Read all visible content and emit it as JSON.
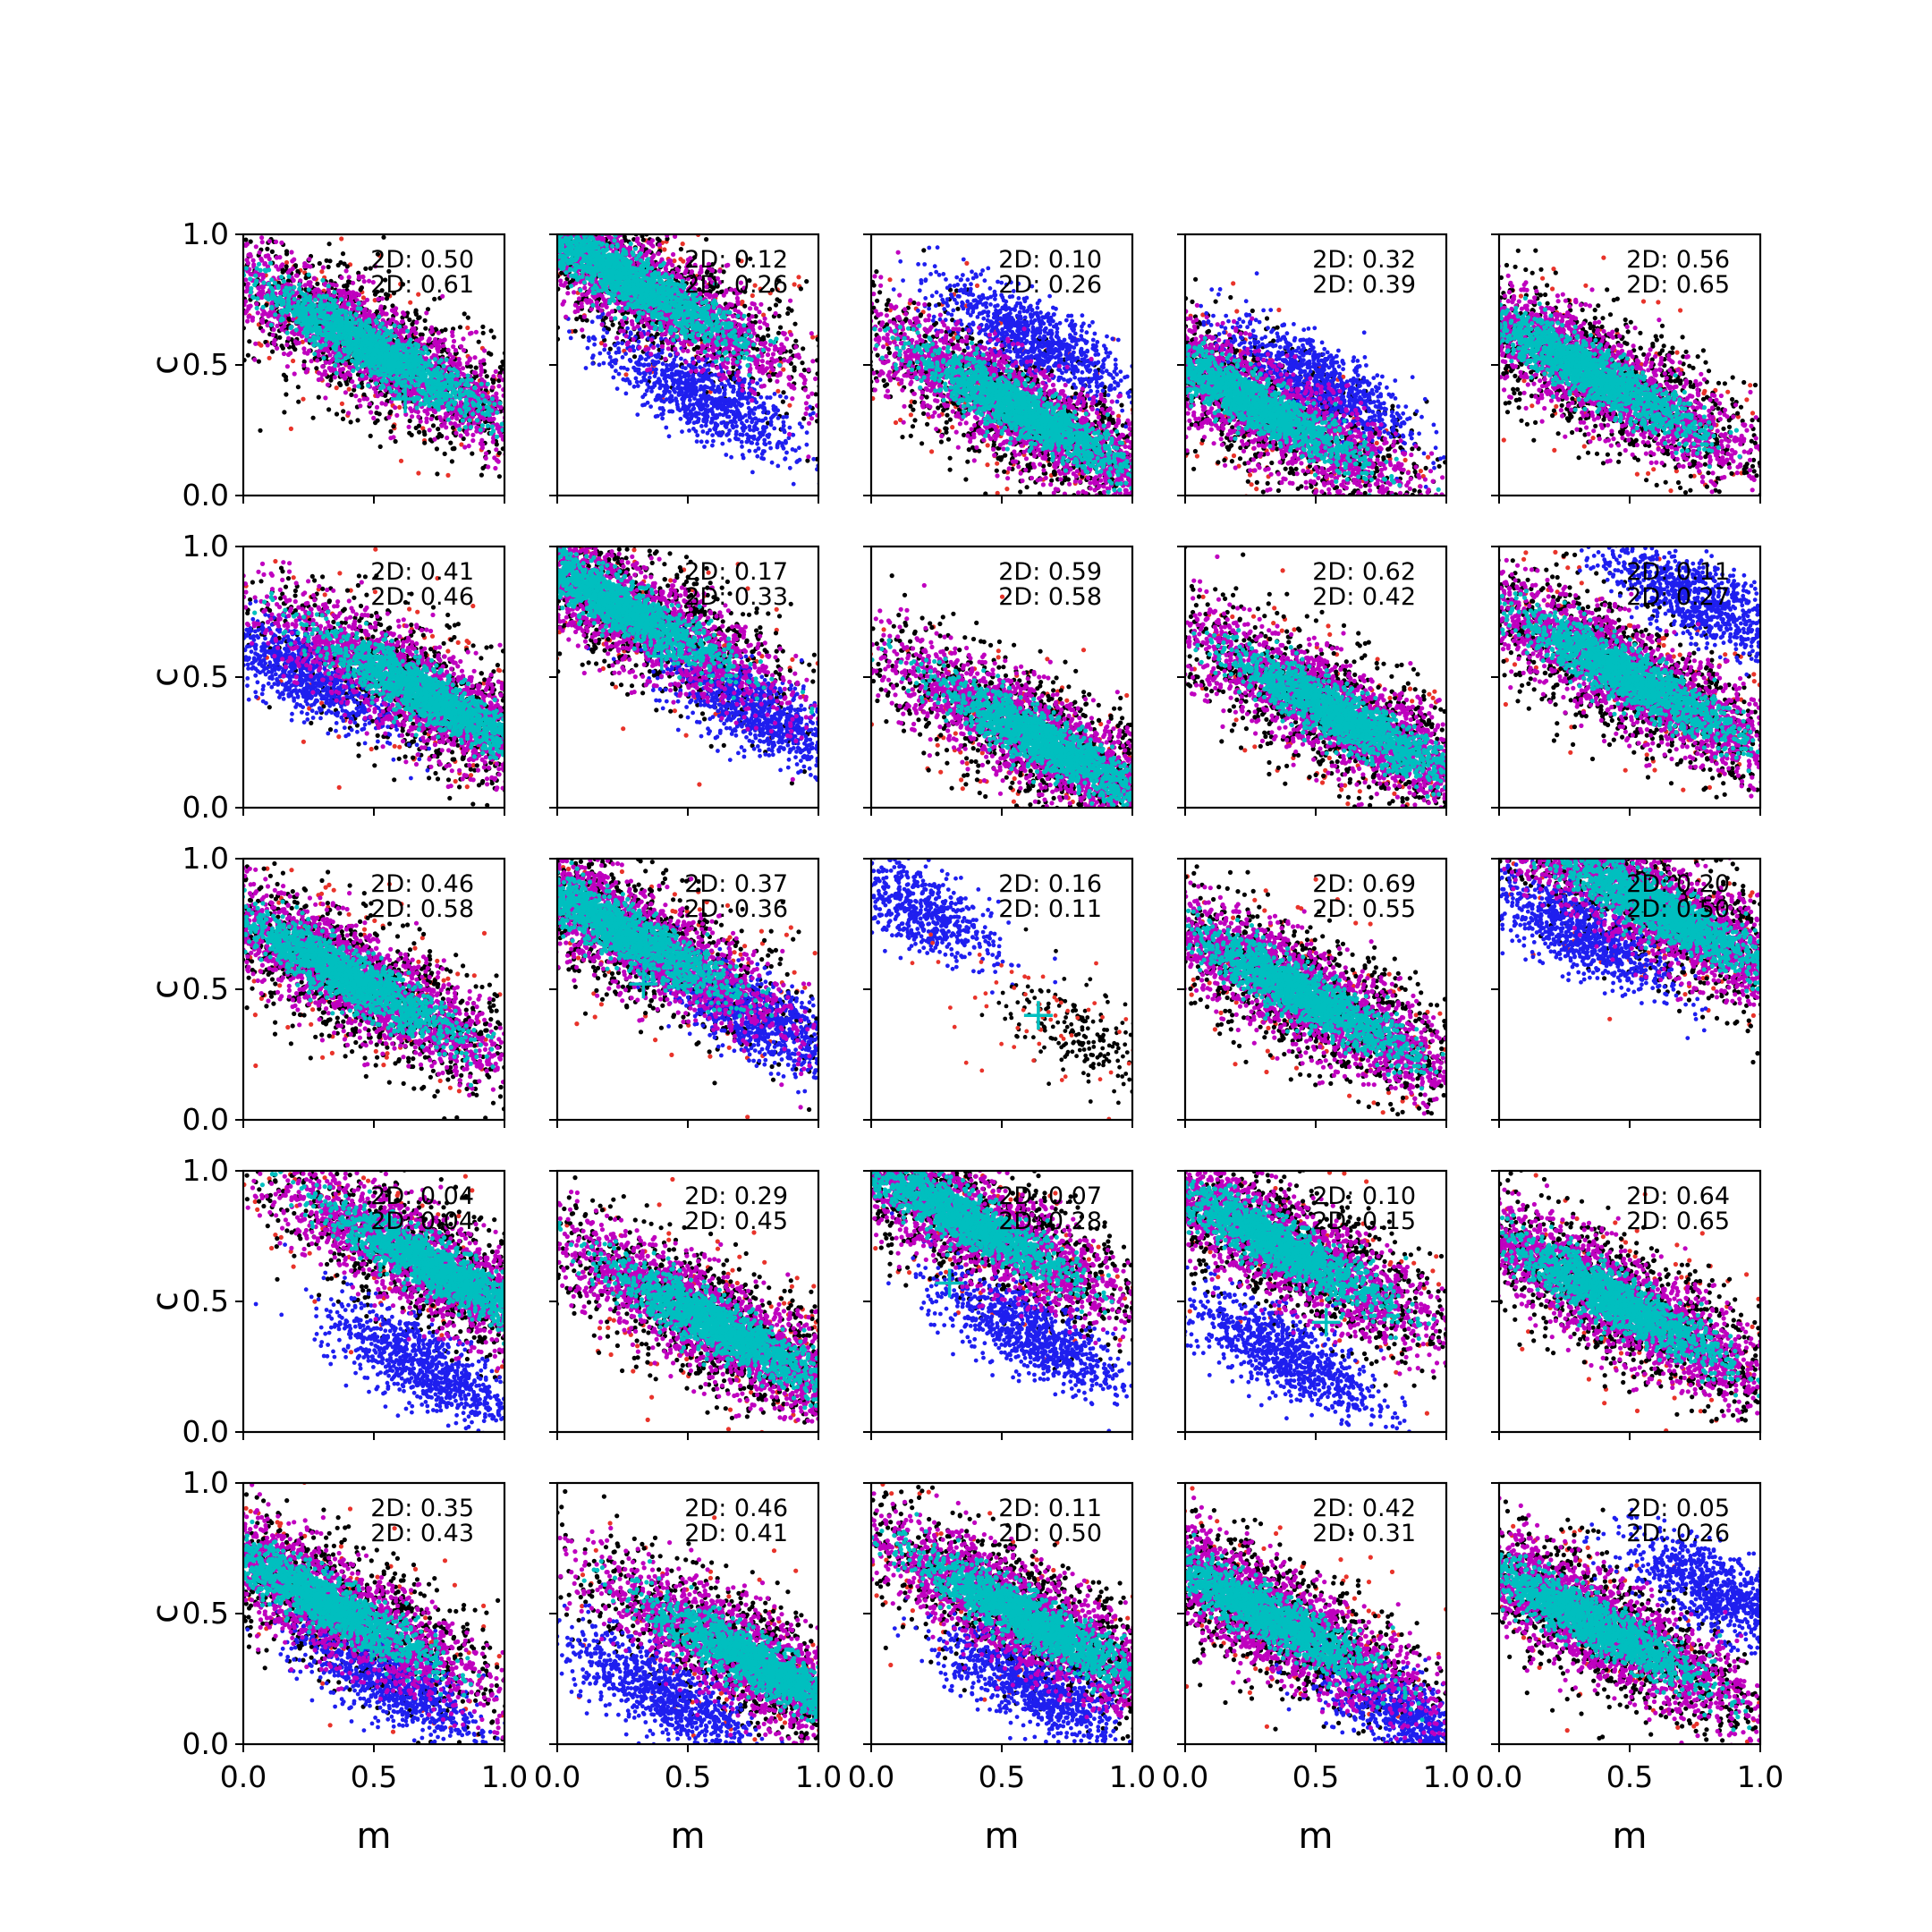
{
  "colors": {
    "red": "#e8332a",
    "black": "#000000",
    "blue": "#1f1fef",
    "magenta": "#bf00bf",
    "cyan": "#00bfbf",
    "axes": "#000000"
  },
  "axis_labels": {
    "x": "m",
    "y": "c"
  },
  "ticks": {
    "x": [
      "0.0",
      "0.5",
      "1.0"
    ],
    "y": [
      "0.0",
      "0.5",
      "1.0"
    ]
  },
  "chart_data": {
    "type": "scatter",
    "grid": false,
    "rows": 5,
    "cols": 5,
    "xlim": [
      0,
      1
    ],
    "ylim": [
      0,
      1
    ],
    "xlabel": "m",
    "ylabel": "c",
    "panels": [
      {
        "ann1": "2D: 0.50",
        "ann2": "2D: 0.61",
        "main": {
          "m": 0.5,
          "c": 0.56
        },
        "cross": {
          "m": 0.62,
          "c": 0.37
        },
        "blue": null
      },
      {
        "ann1": "2D: 0.12",
        "ann2": "2D: 0.26",
        "main": {
          "m": 0.28,
          "c": 0.82
        },
        "cross": {
          "m": 0.52,
          "c": 0.69
        },
        "blue": {
          "m": 0.55,
          "c": 0.38
        }
      },
      {
        "ann1": "2D: 0.10",
        "ann2": "2D: 0.26",
        "main": {
          "m": 0.58,
          "c": 0.32
        },
        "cross": null,
        "blue": {
          "m": 0.62,
          "c": 0.6
        }
      },
      {
        "ann1": "2D: 0.32",
        "ann2": "2D: 0.39",
        "main": {
          "m": 0.25,
          "c": 0.36
        },
        "cross": {
          "m": 0.38,
          "c": 0.27
        },
        "blue": {
          "m": 0.5,
          "c": 0.44
        }
      },
      {
        "ann1": "2D: 0.56",
        "ann2": "2D: 0.65",
        "main": {
          "m": 0.35,
          "c": 0.47
        },
        "cross": null,
        "blue": null
      },
      {
        "ann1": "2D: 0.41",
        "ann2": "2D: 0.46",
        "main": {
          "m": 0.72,
          "c": 0.42
        },
        "cross": {
          "m": 0.48,
          "c": 0.58
        },
        "blue": {
          "m": 0.22,
          "c": 0.52
        }
      },
      {
        "ann1": "2D: 0.17",
        "ann2": "2D: 0.33",
        "main": {
          "m": 0.22,
          "c": 0.78
        },
        "cross": {
          "m": 0.4,
          "c": 0.58
        },
        "blue": {
          "m": 0.75,
          "c": 0.38
        }
      },
      {
        "ann1": "2D: 0.59",
        "ann2": "2D: 0.58",
        "main": {
          "m": 0.68,
          "c": 0.24
        },
        "cross": null,
        "blue": null
      },
      {
        "ann1": "2D: 0.62",
        "ann2": "2D: 0.42",
        "main": {
          "m": 0.6,
          "c": 0.35
        },
        "cross": null,
        "blue": null
      },
      {
        "ann1": "2D: 0.11",
        "ann2": "2D: 0.27",
        "main": {
          "m": 0.5,
          "c": 0.5
        },
        "cross": null,
        "blue": {
          "m": 0.75,
          "c": 0.8
        }
      },
      {
        "ann1": "2D: 0.46",
        "ann2": "2D: 0.58",
        "main": {
          "m": 0.4,
          "c": 0.55
        },
        "cross": null,
        "blue": null
      },
      {
        "ann1": "2D: 0.37",
        "ann2": "2D: 0.36",
        "main": {
          "m": 0.25,
          "c": 0.72
        },
        "cross": {
          "m": 0.33,
          "c": 0.52
        },
        "blue": {
          "m": 0.75,
          "c": 0.4
        }
      },
      {
        "ann1": "2D: 0.16",
        "ann2": "2D: 0.11",
        "main": null,
        "cross": {
          "m": 0.64,
          "c": 0.4
        },
        "blue": {
          "m": 0.2,
          "c": 0.8
        }
      },
      {
        "ann1": "2D: 0.69",
        "ann2": "2D: 0.55",
        "main": {
          "m": 0.45,
          "c": 0.48
        },
        "cross": null,
        "blue": null
      },
      {
        "ann1": "2D: 0.20",
        "ann2": "2D: 0.50",
        "main": {
          "m": 0.62,
          "c": 0.8
        },
        "cross": null,
        "blue": {
          "m": 0.3,
          "c": 0.72
        }
      },
      {
        "ann1": "2D: 0.04",
        "ann2": "2D: 0.04",
        "main": {
          "m": 0.75,
          "c": 0.62
        },
        "cross": {
          "m": 0.59,
          "c": 0.69
        },
        "blue": {
          "m": 0.68,
          "c": 0.26
        }
      },
      {
        "ann1": "2D: 0.29",
        "ann2": "2D: 0.45",
        "main": {
          "m": 0.62,
          "c": 0.4
        },
        "cross": null,
        "blue": null
      },
      {
        "ann1": "2D: 0.07",
        "ann2": "2D: 0.28",
        "main": {
          "m": 0.35,
          "c": 0.82
        },
        "cross": {
          "m": 0.3,
          "c": 0.57
        },
        "blue": {
          "m": 0.6,
          "c": 0.38
        }
      },
      {
        "ann1": "2D: 0.10",
        "ann2": "2D: 0.15",
        "main": {
          "m": 0.35,
          "c": 0.72
        },
        "cross": {
          "m": 0.54,
          "c": 0.42
        },
        "blue": {
          "m": 0.38,
          "c": 0.3
        }
      },
      {
        "ann1": "2D: 0.64",
        "ann2": "2D: 0.65",
        "main": {
          "m": 0.45,
          "c": 0.5
        },
        "cross": null,
        "blue": null
      },
      {
        "ann1": "2D: 0.35",
        "ann2": "2D: 0.43",
        "main": {
          "m": 0.3,
          "c": 0.55
        },
        "cross": {
          "m": 0.49,
          "c": 0.37
        },
        "blue": {
          "m": 0.55,
          "c": 0.25
        }
      },
      {
        "ann1": "2D: 0.46",
        "ann2": "2D: 0.41",
        "main": {
          "m": 0.78,
          "c": 0.3
        },
        "cross": {
          "m": 0.4,
          "c": 0.47
        },
        "blue": {
          "m": 0.4,
          "c": 0.2
        }
      },
      {
        "ann1": "2D: 0.11",
        "ann2": "2D: 0.50",
        "main": {
          "m": 0.6,
          "c": 0.48
        },
        "cross": null,
        "blue": {
          "m": 0.62,
          "c": 0.22
        }
      },
      {
        "ann1": "2D: 0.42",
        "ann2": "2D: 0.31",
        "main": {
          "m": 0.3,
          "c": 0.5
        },
        "cross": null,
        "blue": {
          "m": 0.88,
          "c": 0.08
        }
      },
      {
        "ann1": "2D: 0.05",
        "ann2": "2D: 0.26",
        "main": {
          "m": 0.35,
          "c": 0.47
        },
        "cross": null,
        "blue": {
          "m": 0.85,
          "c": 0.58
        }
      }
    ]
  }
}
